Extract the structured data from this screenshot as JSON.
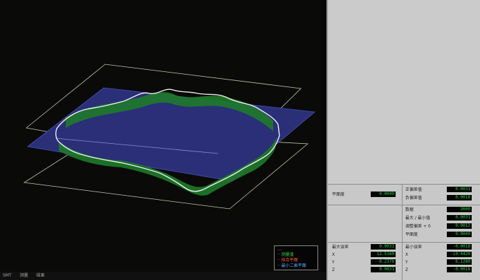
{
  "statusbar": {
    "items": [
      "SMT",
      "测量",
      "结果"
    ]
  },
  "legend": {
    "items": [
      {
        "label": "…",
        "color": "#b8b8b0"
      },
      {
        "label": "·· 测量值",
        "color": "#3fc850"
      },
      {
        "label": "·· 拟合平面",
        "color": "#ff5a32"
      },
      {
        "label": "·· 最小二乘平面",
        "color": "#4ab0ff"
      }
    ]
  },
  "panel": {
    "flatness": {
      "label": "平面度",
      "value": "0.0049"
    },
    "upper_right": [
      {
        "label": "正偏差值",
        "value": "0.0031"
      },
      {
        "label": "负偏差值",
        "value": "0.0018"
      }
    ],
    "mid_right": [
      {
        "label": "数据",
        "value": "3600"
      },
      {
        "label": "最大 / 最小值",
        "value": "0.0031"
      },
      {
        "label": "调整偏差 + 0",
        "value": "0.0012"
      },
      {
        "label": "平面度",
        "value": "0.0049"
      }
    ],
    "bottom_left": {
      "title": "最大误差",
      "title_value": "0.0031",
      "rows": [
        {
          "label": "X",
          "value": "12.5160"
        },
        {
          "label": "Y",
          "value": "-8.2370"
        },
        {
          "label": "Z",
          "value": "0.0031"
        }
      ]
    },
    "bottom_right": {
      "title": "最小误差",
      "title_value": "-0.0018",
      "rows": [
        {
          "label": "X",
          "value": "-10.4420"
        },
        {
          "label": "Y",
          "value": "6.1280"
        },
        {
          "label": "Z",
          "value": "-0.0018"
        }
      ]
    }
  }
}
